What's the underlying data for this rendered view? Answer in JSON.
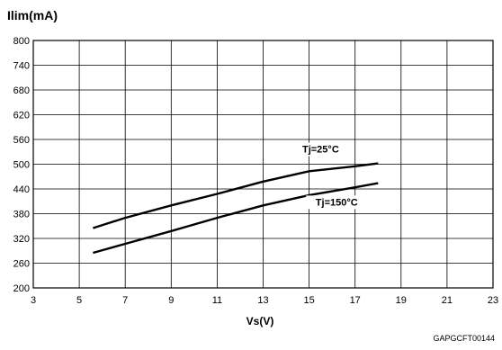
{
  "chart_data": {
    "type": "line",
    "ylabel": "Ilim(mA)",
    "xlabel": "Vs(V)",
    "xlim": [
      3,
      23
    ],
    "ylim": [
      200,
      800
    ],
    "xticks": [
      "3",
      "5",
      "7",
      "9",
      "11",
      "13",
      "15",
      "17",
      "19",
      "21",
      "23"
    ],
    "yticks": [
      "800",
      "740",
      "680",
      "620",
      "560",
      "500",
      "440",
      "380",
      "320",
      "260",
      "200"
    ],
    "grid": true,
    "series": [
      {
        "name": "Tj=25°C",
        "x": [
          5.6,
          7,
          9,
          11,
          13,
          15,
          17,
          18
        ],
        "y": [
          345,
          370,
          400,
          428,
          458,
          483,
          495,
          502
        ]
      },
      {
        "name": "Tj=150°C",
        "x": [
          5.6,
          7,
          9,
          11,
          13,
          15,
          17,
          18
        ],
        "y": [
          285,
          307,
          338,
          370,
          400,
          425,
          444,
          454
        ]
      }
    ]
  },
  "footer_code": "GAPGCFT00144"
}
